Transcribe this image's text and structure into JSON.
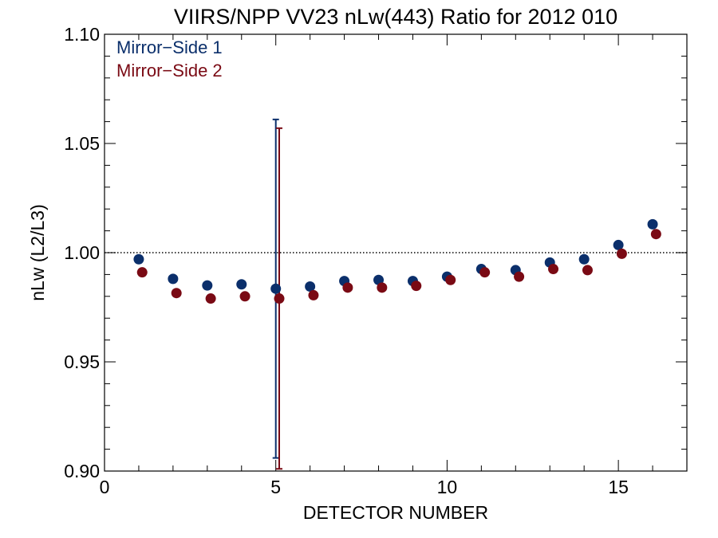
{
  "chart_data": {
    "type": "scatter",
    "title": "VIIRS/NPP VV23 nLw(443) Ratio for 2012 010",
    "xlabel": "DETECTOR NUMBER",
    "ylabel": "nLw (L2/L3)",
    "xlim": [
      0,
      17
    ],
    "ylim": [
      0.9,
      1.1
    ],
    "xticks": [
      0,
      5,
      10,
      15
    ],
    "xtick_labels": [
      "0",
      "5",
      "10",
      "15"
    ],
    "yticks": [
      0.9,
      0.95,
      1.0,
      1.05,
      1.1
    ],
    "ytick_labels": [
      "0.90",
      "0.95",
      "1.00",
      "1.05",
      "1.10"
    ],
    "reference_line": 1.0,
    "legend_position": "top-left",
    "grid": false,
    "series": [
      {
        "name": "Mirror−Side 1",
        "color": "#0b2f6b",
        "x": [
          1,
          2,
          3,
          4,
          5,
          6,
          7,
          8,
          9,
          10,
          11,
          12,
          13,
          14,
          15,
          16
        ],
        "y": [
          0.997,
          0.988,
          0.985,
          0.9855,
          0.9835,
          0.9845,
          0.987,
          0.9875,
          0.987,
          0.989,
          0.9925,
          0.992,
          0.9955,
          0.997,
          1.0035,
          1.013
        ],
        "error_bars": [
          {
            "x": 5,
            "low": 0.906,
            "high": 1.061
          }
        ]
      },
      {
        "name": "Mirror−Side 2",
        "color": "#7a0a14",
        "x": [
          1,
          2,
          3,
          4,
          5,
          6,
          7,
          8,
          9,
          10,
          11,
          12,
          13,
          14,
          15,
          16
        ],
        "y": [
          0.991,
          0.9815,
          0.979,
          0.98,
          0.979,
          0.9805,
          0.984,
          0.984,
          0.9848,
          0.9875,
          0.991,
          0.989,
          0.9925,
          0.992,
          0.9995,
          1.0085
        ],
        "error_bars": [
          {
            "x": 5,
            "low": 0.901,
            "high": 1.057
          }
        ]
      }
    ]
  }
}
